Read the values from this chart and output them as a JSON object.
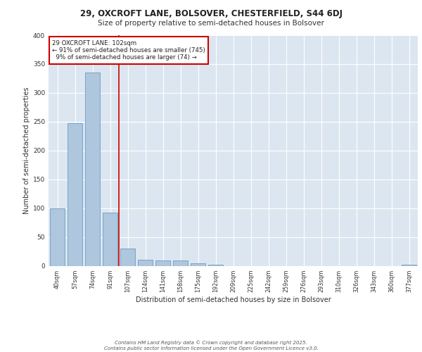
{
  "title1": "29, OXCROFT LANE, BOLSOVER, CHESTERFIELD, S44 6DJ",
  "title2": "Size of property relative to semi-detached houses in Bolsover",
  "xlabel": "Distribution of semi-detached houses by size in Bolsover",
  "ylabel": "Number of semi-detached properties",
  "categories": [
    "40sqm",
    "57sqm",
    "74sqm",
    "91sqm",
    "107sqm",
    "124sqm",
    "141sqm",
    "158sqm",
    "175sqm",
    "192sqm",
    "209sqm",
    "225sqm",
    "242sqm",
    "259sqm",
    "276sqm",
    "293sqm",
    "310sqm",
    "326sqm",
    "343sqm",
    "360sqm",
    "377sqm"
  ],
  "values": [
    100,
    247,
    335,
    92,
    30,
    10,
    9,
    9,
    4,
    2,
    0,
    0,
    0,
    0,
    0,
    0,
    0,
    0,
    0,
    0,
    2
  ],
  "bar_color": "#aec6de",
  "bar_edge_color": "#6a9fc0",
  "vline_x": 3.5,
  "vline_color": "#cc0000",
  "annotation_text": "29 OXCROFT LANE: 102sqm\n← 91% of semi-detached houses are smaller (745)\n  9% of semi-detached houses are larger (74) →",
  "annotation_box_color": "#ffffff",
  "annotation_box_edge": "#cc0000",
  "ylim": [
    0,
    400
  ],
  "yticks": [
    0,
    50,
    100,
    150,
    200,
    250,
    300,
    350,
    400
  ],
  "background_color": "#dce6f0",
  "footer1": "Contains HM Land Registry data © Crown copyright and database right 2025.",
  "footer2": "Contains public sector information licensed under the Open Government Licence v3.0."
}
